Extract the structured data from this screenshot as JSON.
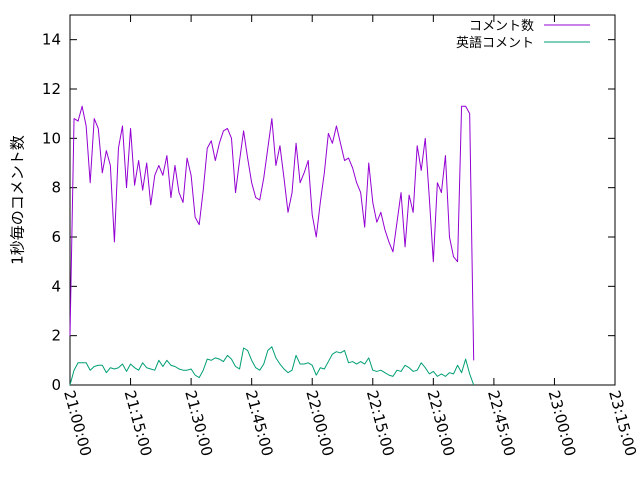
{
  "chart_data": {
    "type": "line",
    "title": "",
    "xlabel": "",
    "ylabel": "1秒毎のコメント数",
    "xlim": [
      "21:00:00",
      "23:15:00"
    ],
    "ylim": [
      0,
      15
    ],
    "x_tick_labels": [
      "21:00:00",
      "21:15:00",
      "21:30:00",
      "21:45:00",
      "22:00:00",
      "22:15:00",
      "22:30:00",
      "22:45:00",
      "23:00:00",
      "23:15:00"
    ],
    "y_tick_labels": [
      "0",
      "2",
      "4",
      "6",
      "8",
      "10",
      "12",
      "14"
    ],
    "grid": false,
    "legend_position": "top-right",
    "sample_interval": "1 minute",
    "series": [
      {
        "name": "コメント数",
        "color": "#9400d3",
        "start": "21:00:00",
        "values": [
          2.0,
          10.8,
          10.7,
          11.3,
          10.5,
          8.2,
          10.8,
          10.4,
          8.6,
          9.5,
          8.9,
          5.8,
          9.6,
          10.5,
          8.0,
          10.4,
          8.1,
          9.1,
          7.9,
          9.0,
          7.3,
          8.5,
          8.9,
          8.5,
          9.3,
          7.6,
          8.9,
          7.8,
          7.4,
          9.2,
          8.5,
          6.8,
          6.5,
          7.9,
          9.6,
          9.9,
          9.1,
          9.8,
          10.3,
          10.4,
          10.0,
          7.8,
          9.1,
          10.3,
          9.2,
          8.2,
          7.6,
          7.5,
          8.4,
          9.6,
          10.8,
          8.9,
          9.7,
          8.4,
          7.0,
          7.8,
          9.8,
          8.2,
          8.6,
          9.1,
          6.9,
          6.0,
          7.4,
          8.6,
          10.2,
          9.8,
          10.5,
          9.8,
          9.1,
          9.2,
          8.8,
          8.2,
          7.8,
          6.4,
          9.0,
          7.4,
          6.6,
          7.0,
          6.3,
          5.8,
          5.4,
          6.6,
          7.8,
          5.6,
          7.7,
          7.0,
          9.7,
          8.7,
          10.0,
          7.6,
          5.0,
          8.2,
          7.8,
          9.3,
          6.0,
          5.2,
          5.0,
          11.3,
          11.3,
          11.0,
          1.0
        ]
      },
      {
        "name": "英語コメント",
        "color": "#009e73",
        "start": "21:00:00",
        "values": [
          0.0,
          0.6,
          0.9,
          0.9,
          0.9,
          0.6,
          0.75,
          0.8,
          0.8,
          0.5,
          0.7,
          0.65,
          0.7,
          0.85,
          0.55,
          0.85,
          0.7,
          0.6,
          0.9,
          0.7,
          0.65,
          0.6,
          1.0,
          0.75,
          1.0,
          0.8,
          0.75,
          0.65,
          0.6,
          0.6,
          0.65,
          0.4,
          0.3,
          0.6,
          1.05,
          1.0,
          1.1,
          1.05,
          0.95,
          1.2,
          1.05,
          0.75,
          0.65,
          1.5,
          1.4,
          1.0,
          0.7,
          0.6,
          0.85,
          1.4,
          1.55,
          1.1,
          0.85,
          0.65,
          0.5,
          0.6,
          1.2,
          0.85,
          0.85,
          0.9,
          0.8,
          0.4,
          0.7,
          0.65,
          0.95,
          1.25,
          1.35,
          1.3,
          1.4,
          0.9,
          0.95,
          0.85,
          0.95,
          0.85,
          1.1,
          0.6,
          0.55,
          0.6,
          0.5,
          0.4,
          0.35,
          0.6,
          0.55,
          0.8,
          0.7,
          0.55,
          0.6,
          0.9,
          0.7,
          0.45,
          0.55,
          0.35,
          0.45,
          0.35,
          0.5,
          0.45,
          0.8,
          0.5,
          1.05,
          0.45,
          0.0
        ]
      }
    ]
  }
}
